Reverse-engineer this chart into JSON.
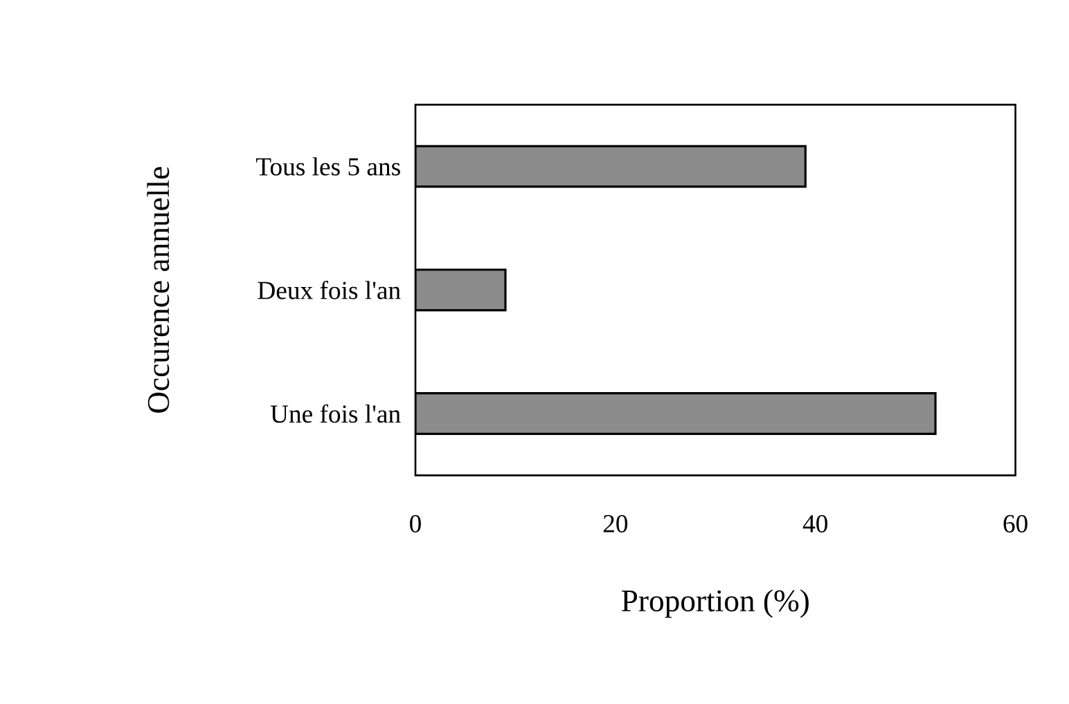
{
  "chart_data": {
    "type": "bar",
    "orientation": "horizontal",
    "xlabel": "Proportion (%)",
    "ylabel": "Occurence annuelle",
    "categories": [
      "Tous les 5 ans",
      "Deux fois l'an",
      "Une fois l'an"
    ],
    "values": [
      39,
      9,
      52
    ],
    "color": "#8c8c8c",
    "xlim": [
      0,
      60
    ],
    "xticks": [
      0,
      20,
      40,
      60
    ]
  }
}
